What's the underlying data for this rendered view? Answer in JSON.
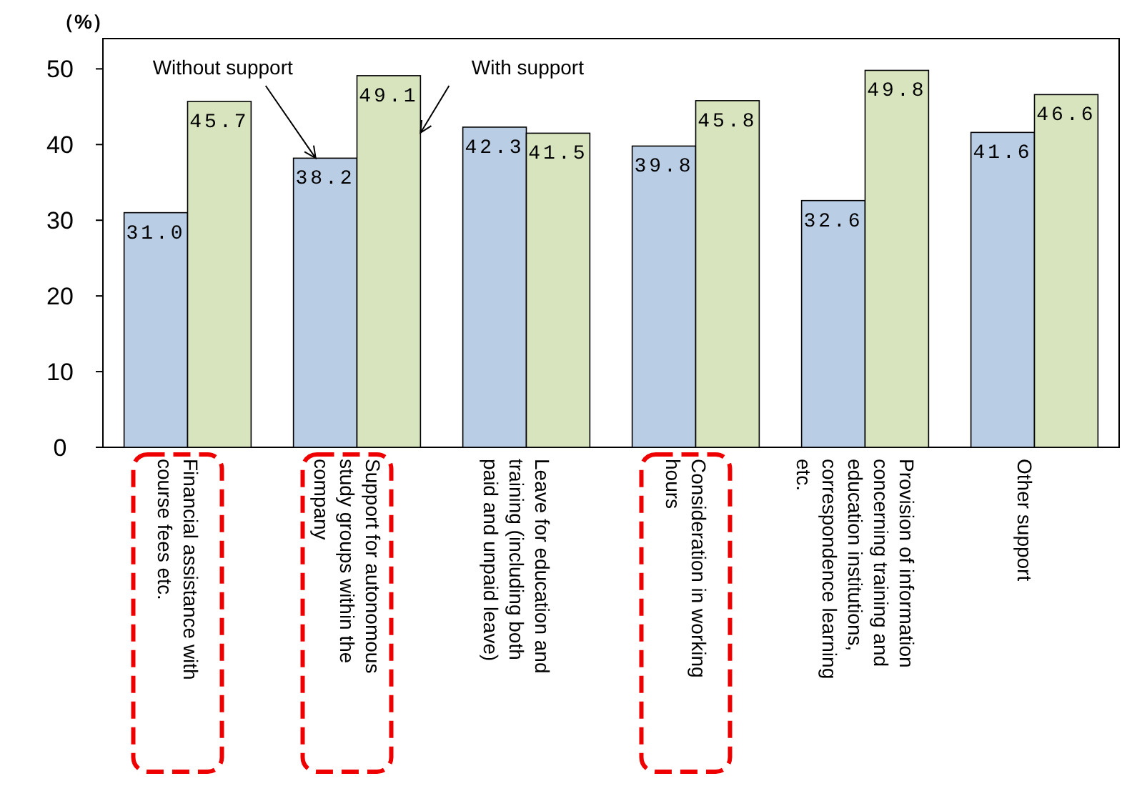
{
  "chart_data": {
    "type": "bar",
    "ylabel": "（%）",
    "categories": [
      "Financial assistance with course fees etc.",
      "Support for autonomous study groups within the company",
      "Leave for education and training (including both paid and unpaid leave)",
      "Consideration in working hours",
      "Provision of information concerning training and education institutions, correspondence learning etc.",
      "Other support"
    ],
    "series": [
      {
        "name": "Without support",
        "color": "#b9cde5",
        "values": [
          31.0,
          38.2,
          42.3,
          39.8,
          32.6,
          41.6
        ],
        "value_labels": [
          "31.0",
          "38.2",
          "42.3",
          "39.8",
          "32.6",
          "41.6"
        ]
      },
      {
        "name": "With support",
        "color": "#d7e4bd",
        "values": [
          45.7,
          49.1,
          41.5,
          45.8,
          49.8,
          46.6
        ],
        "value_labels": [
          "45.7",
          "49.1",
          "41.5",
          "45.8",
          "49.8",
          "46.6"
        ]
      }
    ],
    "ylim": [
      0,
      54
    ],
    "yticks": [
      0,
      10,
      20,
      30,
      40,
      50
    ],
    "grid": false
  }
}
